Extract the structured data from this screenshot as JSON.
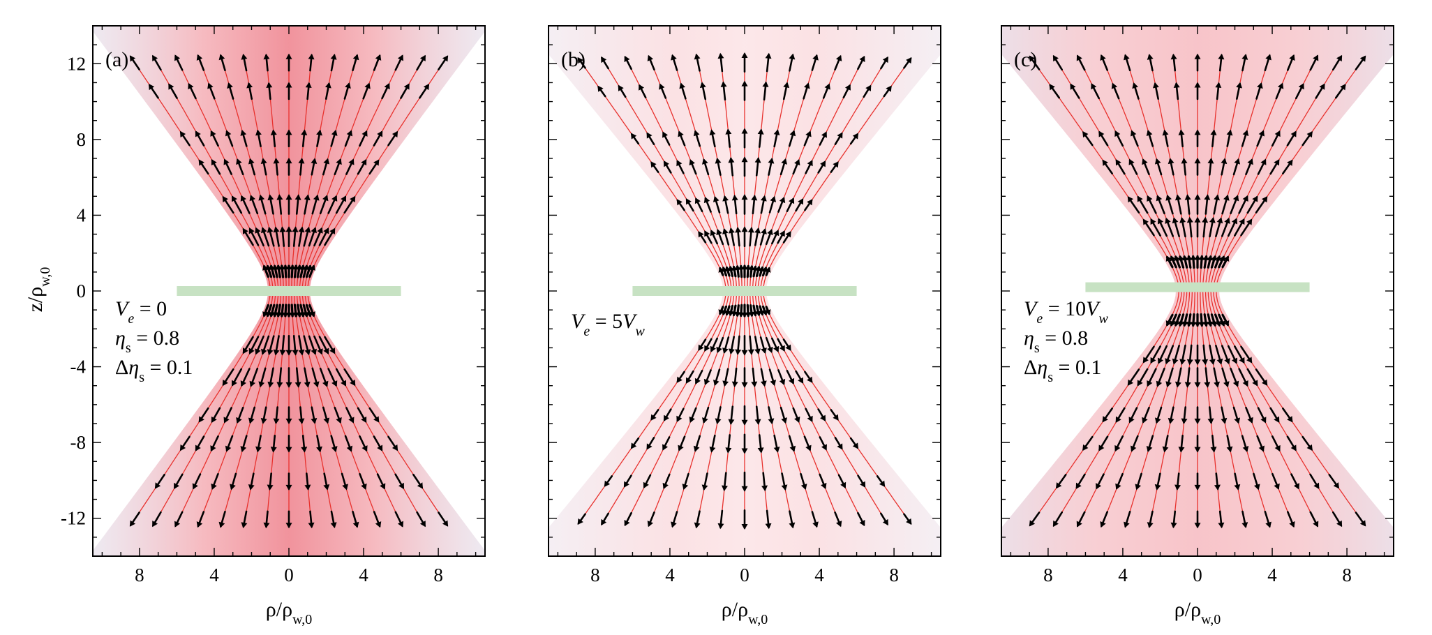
{
  "colors": {
    "beam_core": "#e53b4c",
    "beam_edge": "#b9c2e0",
    "streamline": "#e8312d",
    "arrow": "#000000",
    "plate": "#c7e2c3"
  },
  "axes": {
    "ylabel_main": "z/ρ",
    "ylabel_sub": "w,0",
    "xlabel_main": "ρ/ρ",
    "xlabel_sub": "w,0",
    "xlim": [
      -10.5,
      10.5
    ],
    "ylim": [
      -14,
      14
    ],
    "xticks": [
      {
        "value": -8,
        "label": "8"
      },
      {
        "value": -4,
        "label": "4"
      },
      {
        "value": 0,
        "label": "0"
      },
      {
        "value": 4,
        "label": "4"
      },
      {
        "value": 8,
        "label": "8"
      }
    ],
    "yticks": [
      {
        "value": 12,
        "label": "12"
      },
      {
        "value": 8,
        "label": "8"
      },
      {
        "value": 4,
        "label": "4"
      },
      {
        "value": 0,
        "label": "0"
      },
      {
        "value": -4,
        "label": "-4"
      },
      {
        "value": -8,
        "label": "-8"
      },
      {
        "value": -12,
        "label": "-12"
      }
    ]
  },
  "chart_data": [
    {
      "type": "streamplot",
      "panel_label": "(a)",
      "annotation_lines": [
        {
          "sym": "V",
          "sub": "e",
          "rhs": " = 0"
        },
        {
          "sym": "η",
          "sub": "s",
          "rhs": " = 0.8"
        },
        {
          "prefix": "Δ",
          "sym": "η",
          "sub": "s",
          "rhs": " = 0.1"
        }
      ],
      "xlim": [
        -10.5,
        10.5
      ],
      "ylim": [
        -14,
        14
      ],
      "beam_waist": 1,
      "beam_half_angle_slope": 0.68,
      "plate": {
        "rho": [
          -6,
          6
        ],
        "z": 0.0
      },
      "flow": "divergent",
      "streamline_count": 15,
      "arrow_rows_z": [
        12,
        10.5,
        8,
        6.5,
        4.5,
        2.8,
        1,
        -1,
        -2.8,
        -4.5,
        -6.5,
        -8,
        -10,
        -12
      ]
    },
    {
      "type": "streamplot",
      "panel_label": "(b)",
      "annotation_lines": [
        {
          "sym": "V",
          "sub": "e",
          "rhs": " = 5",
          "sym2": "V",
          "sub2": "w"
        }
      ],
      "xlim": [
        -10.5,
        10.5
      ],
      "ylim": [
        -14,
        14
      ],
      "beam_waist": 1,
      "beam_half_angle_slope": 0.72,
      "plate": {
        "rho": [
          -6,
          6
        ],
        "z": 0.0
      },
      "flow": "divergent",
      "streamline_count": 15,
      "arrow_rows_z": [
        12,
        10.5,
        8,
        6.5,
        4.5,
        2.8,
        1,
        -1,
        -2.8,
        -4.5,
        -6.5,
        -8,
        -10,
        -12
      ]
    },
    {
      "type": "streamplot",
      "panel_label": "(c)",
      "annotation_lines": [
        {
          "sym": "V",
          "sub": "e",
          "rhs": " = 10",
          "sym2": "V",
          "sub2": "w"
        },
        {
          "sym": "η",
          "sub": "s",
          "rhs": " = 0.8"
        },
        {
          "prefix": "Δ",
          "sym": "η",
          "sub": "s",
          "rhs": " = 0.1"
        }
      ],
      "xlim": [
        -10.5,
        10.5
      ],
      "ylim": [
        -14,
        14
      ],
      "beam_waist": 1,
      "beam_half_angle_slope": 0.72,
      "plate": {
        "rho": [
          -6,
          6
        ],
        "z": 0.2
      },
      "flow": "divergent",
      "streamline_count": 15,
      "arrow_rows_z": [
        12,
        10.5,
        8,
        6.5,
        4.5,
        3.3,
        1.5,
        -1.5,
        -3.3,
        -4.5,
        -6.5,
        -8,
        -10,
        -12
      ]
    }
  ]
}
